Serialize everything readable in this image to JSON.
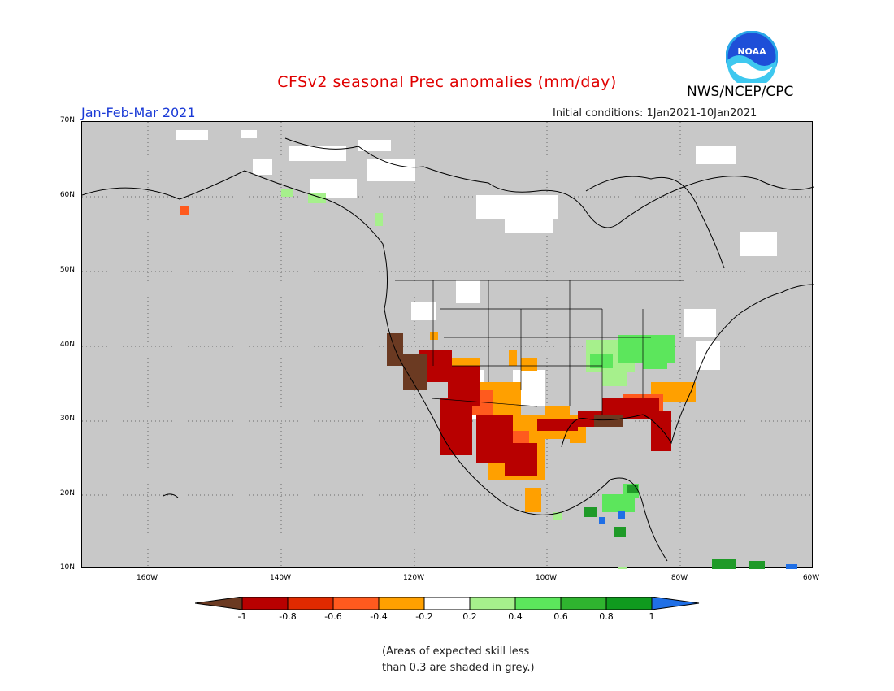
{
  "header": {
    "title": "CFSv2 seasonal Prec anomalies (mm/day)",
    "period": "Jan-Feb-Mar 2021",
    "initial_conditions": "Initial conditions: 1Jan2021-10Jan2021",
    "agency": "NWS/NCEP/CPC",
    "logo_text": "NOAA"
  },
  "map": {
    "lat_labels": [
      "70N",
      "60N",
      "50N",
      "40N",
      "30N",
      "20N",
      "10N"
    ],
    "lon_labels": [
      "160W",
      "140W",
      "120W",
      "100W",
      "80W",
      "60W"
    ],
    "grid_color": "#666666",
    "background_color": "#c8c8c8"
  },
  "colorbar": {
    "labels": [
      "-1",
      "-0.8",
      "-0.6",
      "-0.4",
      "-0.2",
      "0.2",
      "0.4",
      "0.6",
      "0.8",
      "1"
    ],
    "colors": [
      "#6b3a22",
      "#b80000",
      "#e02a00",
      "#ff5a1e",
      "#ffa000",
      "#ffffff",
      "#a6f08c",
      "#5ce65c",
      "#2fb42f",
      "#0f9a1e",
      "#1f6fe6"
    ]
  },
  "note": {
    "line1": "(Areas of expected skill less",
    "line2": "than 0.3 are shaded in grey.)"
  }
}
